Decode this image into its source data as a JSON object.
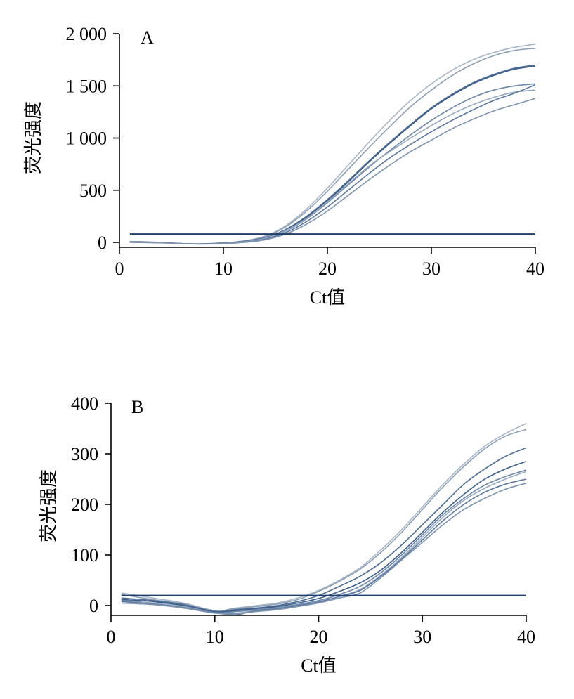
{
  "chart_data": [
    {
      "type": "line",
      "panel_label": "A",
      "xlabel": "Ct值",
      "ylabel": "荧光强度",
      "xlim": [
        0,
        40
      ],
      "ylim": [
        0,
        2000
      ],
      "xticks": [
        0,
        10,
        20,
        30,
        40
      ],
      "xtick_labels": [
        "0",
        "10",
        "20",
        "30",
        "40"
      ],
      "yticks": [
        0,
        500,
        1000,
        1500,
        2000
      ],
      "ytick_labels": [
        "0",
        "500",
        "1 000",
        "1 500",
        "2 000"
      ],
      "threshold": {
        "y": 80,
        "x": [
          1,
          40
        ]
      },
      "x": [
        1,
        4,
        7,
        10,
        12,
        14,
        16,
        18,
        20,
        22,
        24,
        26,
        28,
        30,
        32,
        34,
        36,
        38,
        40
      ],
      "series": [
        {
          "values": [
            10,
            0,
            -15,
            -5,
            15,
            60,
            160,
            320,
            520,
            740,
            960,
            1170,
            1360,
            1520,
            1650,
            1750,
            1820,
            1870,
            1900
          ]
        },
        {
          "values": [
            8,
            0,
            -15,
            -5,
            15,
            55,
            150,
            300,
            490,
            700,
            910,
            1110,
            1300,
            1460,
            1600,
            1710,
            1790,
            1840,
            1860
          ]
        },
        {
          "values": [
            5,
            -2,
            -15,
            -8,
            10,
            45,
            125,
            250,
            410,
            590,
            780,
            960,
            1130,
            1290,
            1420,
            1530,
            1610,
            1670,
            1700
          ]
        },
        {
          "values": [
            5,
            -2,
            -15,
            -8,
            8,
            42,
            120,
            240,
            400,
            580,
            770,
            950,
            1120,
            1280,
            1410,
            1520,
            1600,
            1660,
            1690
          ]
        },
        {
          "values": [
            3,
            -3,
            -15,
            -10,
            5,
            38,
            110,
            225,
            380,
            550,
            720,
            880,
            1030,
            1170,
            1290,
            1390,
            1460,
            1500,
            1520
          ]
        },
        {
          "values": [
            4,
            -3,
            -15,
            -10,
            6,
            40,
            115,
            230,
            390,
            560,
            730,
            870,
            1000,
            1120,
            1230,
            1320,
            1390,
            1440,
            1460
          ]
        },
        {
          "values": [
            2,
            -4,
            -15,
            -12,
            2,
            30,
            95,
            200,
            340,
            500,
            660,
            810,
            940,
            1060,
            1170,
            1270,
            1360,
            1430,
            1510
          ]
        },
        {
          "values": [
            0,
            -5,
            -15,
            -12,
            0,
            25,
            80,
            175,
            300,
            450,
            600,
            740,
            870,
            980,
            1090,
            1180,
            1260,
            1320,
            1380
          ]
        }
      ]
    },
    {
      "type": "line",
      "panel_label": "B",
      "xlabel": "Ct值",
      "ylabel": "荧光强度",
      "xlim": [
        0,
        40
      ],
      "ylim": [
        -20,
        400
      ],
      "xticks": [
        0,
        10,
        20,
        30,
        40
      ],
      "xtick_labels": [
        "0",
        "10",
        "20",
        "30",
        "40"
      ],
      "yticks": [
        0,
        100,
        200,
        300,
        400
      ],
      "ytick_labels": [
        "0",
        "100",
        "200",
        "300",
        "400"
      ],
      "threshold": {
        "y": 20,
        "x": [
          1,
          40
        ]
      },
      "x": [
        1,
        4,
        7,
        10,
        12,
        14,
        16,
        18,
        20,
        22,
        24,
        26,
        28,
        30,
        32,
        34,
        36,
        38,
        40
      ],
      "series": [
        {
          "values": [
            25,
            15,
            5,
            -10,
            -5,
            0,
            5,
            15,
            30,
            50,
            75,
            110,
            150,
            195,
            240,
            280,
            315,
            340,
            360
          ]
        },
        {
          "values": [
            22,
            12,
            3,
            -10,
            -6,
            -2,
            3,
            12,
            28,
            48,
            72,
            105,
            145,
            190,
            235,
            275,
            310,
            335,
            348
          ]
        },
        {
          "values": [
            15,
            10,
            2,
            -12,
            -8,
            -5,
            0,
            8,
            20,
            38,
            58,
            85,
            120,
            160,
            200,
            240,
            270,
            295,
            312
          ]
        },
        {
          "values": [
            12,
            8,
            0,
            -12,
            -10,
            -6,
            -2,
            5,
            14,
            28,
            45,
            70,
            105,
            145,
            185,
            220,
            250,
            270,
            285
          ]
        },
        {
          "values": [
            10,
            5,
            -2,
            -14,
            -12,
            -8,
            -4,
            2,
            10,
            22,
            38,
            65,
            100,
            140,
            180,
            212,
            238,
            255,
            268
          ]
        },
        {
          "values": [
            8,
            5,
            -2,
            -14,
            -15,
            -10,
            -5,
            0,
            8,
            18,
            32,
            60,
            95,
            135,
            175,
            208,
            232,
            250,
            265
          ]
        },
        {
          "values": [
            8,
            3,
            -4,
            -14,
            -18,
            -10,
            -6,
            0,
            7,
            18,
            30,
            58,
            92,
            130,
            168,
            200,
            224,
            240,
            250
          ]
        },
        {
          "values": [
            5,
            2,
            -5,
            -15,
            -16,
            -12,
            -8,
            -2,
            5,
            15,
            25,
            55,
            90,
            125,
            160,
            190,
            212,
            230,
            242
          ]
        }
      ]
    }
  ]
}
